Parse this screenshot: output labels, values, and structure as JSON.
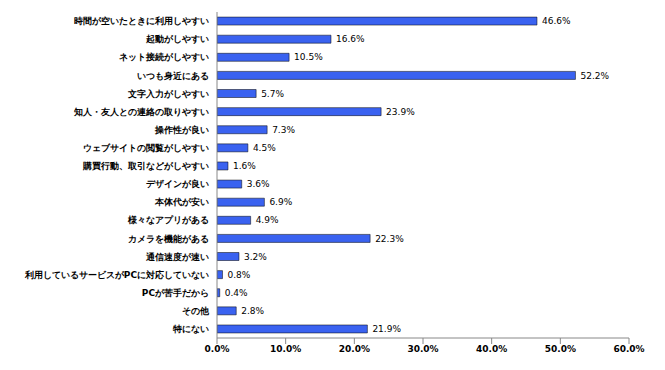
{
  "chart_data": {
    "type": "bar",
    "orientation": "horizontal",
    "categories": [
      "時間が空いたときに利用しやすい",
      "起動がしやすい",
      "ネット接続がしやすい",
      "いつも身近にある",
      "文字入力がしやすい",
      "知人・友人との連絡の取りやすい",
      "操作性が良い",
      "ウェブサイトの閲覧がしやすい",
      "購買行動、取引などがしやすい",
      "デザインが良い",
      "本体代が安い",
      "様々なアプリがある",
      "カメラを機能がある",
      "通信速度が速い",
      "利用しているサービスがPCに対応していない",
      "PCが苦手だから",
      "その他",
      "特にない"
    ],
    "values": [
      46.6,
      16.6,
      10.5,
      52.2,
      5.7,
      23.9,
      7.3,
      4.5,
      1.6,
      3.6,
      6.9,
      4.9,
      22.3,
      3.2,
      0.8,
      0.4,
      2.8,
      21.9
    ],
    "value_labels": [
      "46.6%",
      "16.6%",
      "10.5%",
      "52.2%",
      "5.7%",
      "23.9%",
      "7.3%",
      "4.5%",
      "1.6%",
      "3.6%",
      "6.9%",
      "4.9%",
      "22.3%",
      "3.2%",
      "0.8%",
      "0.4%",
      "2.8%",
      "21.9%"
    ],
    "color": "#3a62f0",
    "xlim": [
      0,
      60
    ],
    "xticks": [
      {
        "value": 0,
        "label": "0.0%"
      },
      {
        "value": 10,
        "label": "10.0%"
      },
      {
        "value": 20,
        "label": "20.0%"
      },
      {
        "value": 30,
        "label": "30.0%"
      },
      {
        "value": 40,
        "label": "40.0%"
      },
      {
        "value": 50,
        "label": "50.0%"
      },
      {
        "value": 60,
        "label": "60.0%"
      }
    ],
    "grid": false,
    "data_labels": true
  }
}
